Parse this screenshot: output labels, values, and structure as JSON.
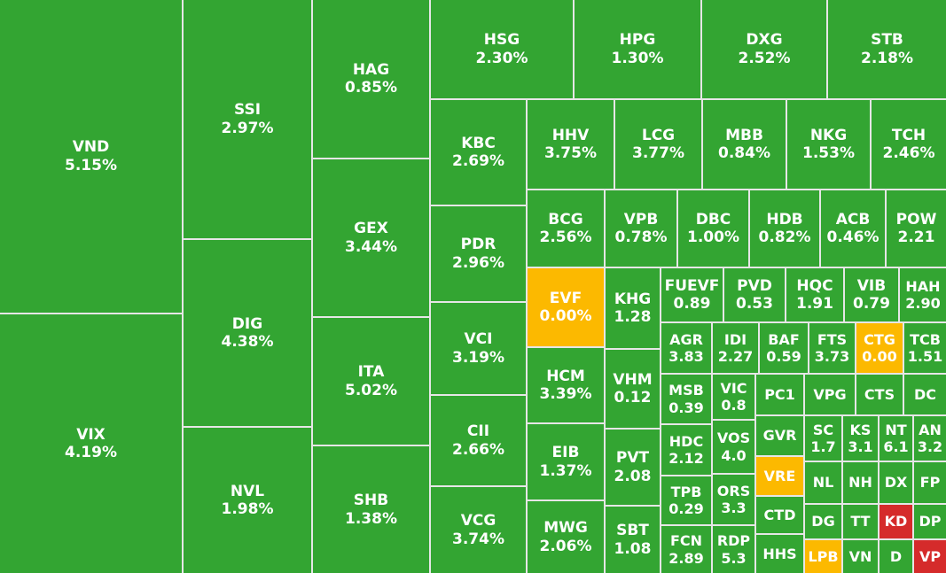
{
  "colors": {
    "up": "#33a532",
    "ref": "#fcb900",
    "down": "#d52b2b",
    "gap": "#e6e6e6"
  },
  "chart_data": {
    "type": "treemap",
    "items": [
      {
        "s": "VND",
        "v": "5.15%",
        "c": "up"
      },
      {
        "s": "VIX",
        "v": "4.19%",
        "c": "up"
      },
      {
        "s": "SSI",
        "v": "2.97%",
        "c": "up"
      },
      {
        "s": "DIG",
        "v": "4.38%",
        "c": "up"
      },
      {
        "s": "NVL",
        "v": "1.98%",
        "c": "up"
      },
      {
        "s": "HAG",
        "v": "0.85%",
        "c": "up"
      },
      {
        "s": "GEX",
        "v": "3.44%",
        "c": "up"
      },
      {
        "s": "ITA",
        "v": "5.02%",
        "c": "up"
      },
      {
        "s": "SHB",
        "v": "1.38%",
        "c": "up"
      },
      {
        "s": "HSG",
        "v": "2.30%",
        "c": "up"
      },
      {
        "s": "HPG",
        "v": "1.30%",
        "c": "up"
      },
      {
        "s": "DXG",
        "v": "2.52%",
        "c": "up"
      },
      {
        "s": "STB",
        "v": "2.18%",
        "c": "up"
      },
      {
        "s": "KBC",
        "v": "2.69%",
        "c": "up"
      },
      {
        "s": "PDR",
        "v": "2.96%",
        "c": "up"
      },
      {
        "s": "VCI",
        "v": "3.19%",
        "c": "up"
      },
      {
        "s": "CII",
        "v": "2.66%",
        "c": "up"
      },
      {
        "s": "VCG",
        "v": "3.74%",
        "c": "up"
      },
      {
        "s": "HHV",
        "v": "3.75%",
        "c": "up"
      },
      {
        "s": "LCG",
        "v": "3.77%",
        "c": "up"
      },
      {
        "s": "MBB",
        "v": "0.84%",
        "c": "up"
      },
      {
        "s": "NKG",
        "v": "1.53%",
        "c": "up"
      },
      {
        "s": "TCH",
        "v": "2.46%",
        "c": "up"
      },
      {
        "s": "BCG",
        "v": "2.56%",
        "c": "up"
      },
      {
        "s": "VPB",
        "v": "0.78%",
        "c": "up"
      },
      {
        "s": "DBC",
        "v": "1.00%",
        "c": "up"
      },
      {
        "s": "HDB",
        "v": "0.82%",
        "c": "up"
      },
      {
        "s": "ACB",
        "v": "0.46%",
        "c": "up"
      },
      {
        "s": "POW",
        "v": "2.21",
        "c": "up"
      },
      {
        "s": "EVF",
        "v": "0.00%",
        "c": "ref"
      },
      {
        "s": "KHG",
        "v": "1.28",
        "c": "up"
      },
      {
        "s": "FUEVF",
        "v": "0.89",
        "c": "up"
      },
      {
        "s": "PVD",
        "v": "0.53",
        "c": "up"
      },
      {
        "s": "HQC",
        "v": "1.91",
        "c": "up"
      },
      {
        "s": "VIB",
        "v": "0.79",
        "c": "up"
      },
      {
        "s": "HAH",
        "v": "2.90",
        "c": "up"
      },
      {
        "s": "HCM",
        "v": "3.39%",
        "c": "up"
      },
      {
        "s": "EIB",
        "v": "1.37%",
        "c": "up"
      },
      {
        "s": "MWG",
        "v": "2.06%",
        "c": "up"
      },
      {
        "s": "VHM",
        "v": "0.12",
        "c": "up"
      },
      {
        "s": "PVT",
        "v": "2.08",
        "c": "up"
      },
      {
        "s": "SBT",
        "v": "1.08",
        "c": "up"
      },
      {
        "s": "AGR",
        "v": "3.83",
        "c": "up"
      },
      {
        "s": "IDI",
        "v": "2.27",
        "c": "up"
      },
      {
        "s": "BAF",
        "v": "0.59",
        "c": "up"
      },
      {
        "s": "FTS",
        "v": "3.73",
        "c": "up"
      },
      {
        "s": "CTG",
        "v": "0.00",
        "c": "ref"
      },
      {
        "s": "TCB",
        "v": "1.51",
        "c": "up"
      },
      {
        "s": "MSB",
        "v": "0.39",
        "c": "up"
      },
      {
        "s": "VIC",
        "v": "0.8",
        "c": "up"
      },
      {
        "s": "PC1",
        "v": "",
        "c": "up"
      },
      {
        "s": "VPG",
        "v": "",
        "c": "up"
      },
      {
        "s": "CTS",
        "v": "",
        "c": "up"
      },
      {
        "s": "DC",
        "v": "",
        "c": "up"
      },
      {
        "s": "HDC",
        "v": "2.12",
        "c": "up"
      },
      {
        "s": "VOS",
        "v": "4.0",
        "c": "up"
      },
      {
        "s": "GVR",
        "v": "",
        "c": "up"
      },
      {
        "s": "SC",
        "v": "1.7",
        "c": "up"
      },
      {
        "s": "KS",
        "v": "3.1",
        "c": "up"
      },
      {
        "s": "NT",
        "v": "6.1",
        "c": "up"
      },
      {
        "s": "AN",
        "v": "3.2",
        "c": "up"
      },
      {
        "s": "TPB",
        "v": "0.29",
        "c": "up"
      },
      {
        "s": "ORS",
        "v": "3.3",
        "c": "up"
      },
      {
        "s": "VRE",
        "v": "",
        "c": "ref"
      },
      {
        "s": "NL",
        "v": "",
        "c": "up"
      },
      {
        "s": "NH",
        "v": "",
        "c": "up"
      },
      {
        "s": "DX",
        "v": "",
        "c": "up"
      },
      {
        "s": "FP",
        "v": "",
        "c": "up"
      },
      {
        "s": "FCN",
        "v": "2.89",
        "c": "up"
      },
      {
        "s": "RDP",
        "v": "5.3",
        "c": "up"
      },
      {
        "s": "CTD",
        "v": "",
        "c": "up"
      },
      {
        "s": "DG",
        "v": "",
        "c": "up"
      },
      {
        "s": "TT",
        "v": "",
        "c": "up"
      },
      {
        "s": "KD",
        "v": "",
        "c": "down"
      },
      {
        "s": "DP",
        "v": "",
        "c": "up"
      },
      {
        "s": "HHS",
        "v": "",
        "c": "up"
      },
      {
        "s": "LPB",
        "v": "",
        "c": "ref"
      },
      {
        "s": "VN",
        "v": "",
        "c": "up"
      },
      {
        "s": "D",
        "v": "",
        "c": "up"
      },
      {
        "s": "VP",
        "v": "",
        "c": "down"
      }
    ]
  }
}
